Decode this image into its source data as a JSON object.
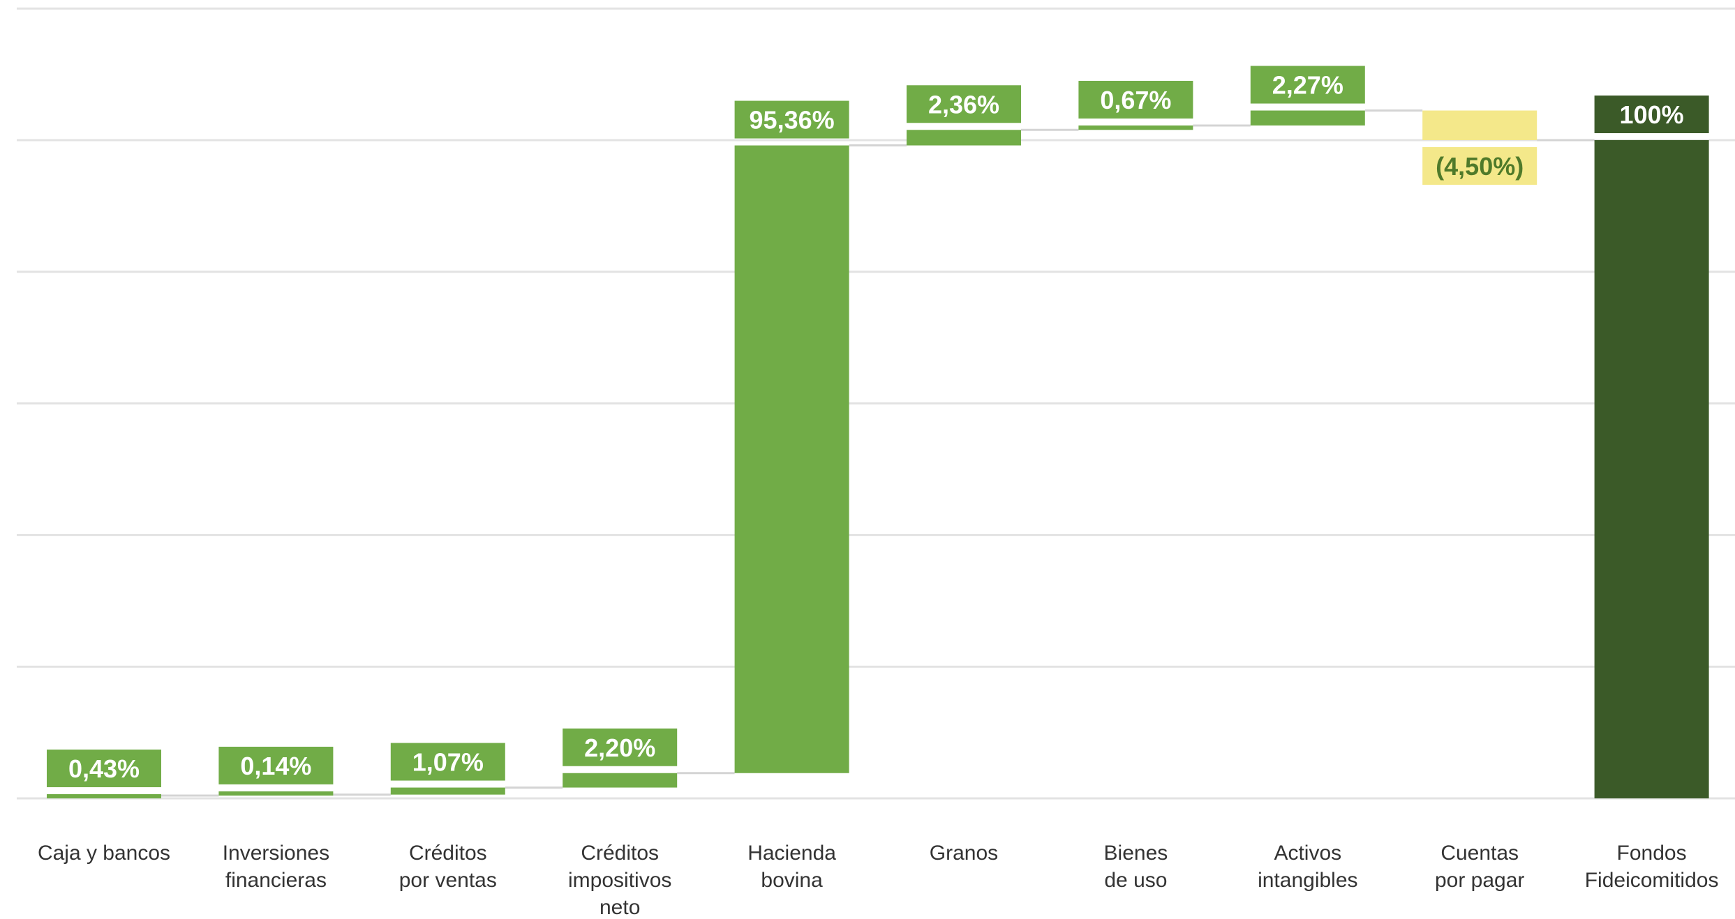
{
  "chart_data": {
    "type": "bar",
    "subtype": "waterfall",
    "title": "",
    "xlabel": "",
    "ylabel": "",
    "grid": true,
    "legend": "none",
    "categories": [
      "Caja y bancos",
      "Inversiones financieras",
      "Créditos por ventas",
      "Créditos impositivos neto",
      "Hacienda bovina",
      "Granos",
      "Bienes de uso",
      "Activos intangibles",
      "Cuentas por pagar",
      "Fondos Fideicomitidos"
    ],
    "category_lines": [
      [
        "Caja y bancos"
      ],
      [
        "Inversiones",
        "financieras"
      ],
      [
        "Créditos",
        "por ventas"
      ],
      [
        "Créditos",
        "impositivos",
        "neto"
      ],
      [
        "Hacienda",
        "bovina"
      ],
      [
        "Granos"
      ],
      [
        "Bienes",
        "de uso"
      ],
      [
        "Activos",
        "intangibles"
      ],
      [
        "Cuentas",
        "por pagar"
      ],
      [
        "Fondos",
        "Fideicomitidos"
      ]
    ],
    "values": [
      0.43,
      0.14,
      1.07,
      2.2,
      95.36,
      2.36,
      0.67,
      2.27,
      -4.5,
      100
    ],
    "value_labels": [
      "0,43%",
      "0,14%",
      "1,07%",
      "2,20%",
      "95,36%",
      "2,36%",
      "0,67%",
      "2,27%",
      "(4,50%)",
      "100%"
    ],
    "is_total": [
      false,
      false,
      false,
      false,
      false,
      false,
      false,
      false,
      false,
      true
    ],
    "ylim": [
      0,
      120
    ],
    "colors": {
      "increase": "#71ac47",
      "decrease": "#f4e88a",
      "decrease_text": "#4f7a2a",
      "total": "#3b5a28",
      "label_text": "#ffffff",
      "grid": "#e3e3e3",
      "connector": "#d4d4d4"
    }
  }
}
